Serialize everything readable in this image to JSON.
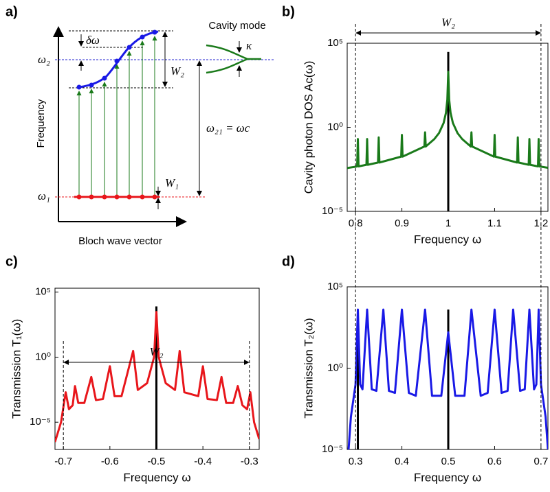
{
  "diagram": {
    "label": "a)",
    "cavity_mode": "Cavity mode",
    "delta_omega": "δω",
    "kappa": "κ",
    "omega2": "ω₂",
    "omega1": "ω₁",
    "W2": "W₂",
    "W1": "W₁",
    "omega21": "ω₂₁ = ωc",
    "ylabel": "Frequency",
    "xlabel": "Bloch wave vector"
  },
  "chart_data": [
    {
      "type": "line",
      "label": "b)",
      "xlabel": "Frequency ω",
      "ylabel": "Cavity photon DOS Ac(ω)",
      "log": true,
      "color": "#1a7a1a",
      "span_label": "W₂",
      "xlim": [
        0.782,
        1.215
      ],
      "ylim": [
        1e-05,
        100000.0
      ],
      "xticks": [
        {
          "value": 0.8,
          "label": "0.8"
        },
        {
          "value": 0.9,
          "label": "0.9"
        },
        1,
        {
          "value": 1.1,
          "label": "1.1"
        },
        {
          "value": 1.2,
          "label": "1.2"
        }
      ],
      "yticks": [
        {
          "value": 1e-05,
          "label": "10⁻⁵"
        },
        {
          "value": 1,
          "label": "10⁰"
        },
        {
          "value": 100000.0,
          "label": "10⁵"
        }
      ],
      "vlines": [
        0.8,
        1.2
      ],
      "x": [
        0.782,
        0.8,
        0.8035,
        0.805,
        0.8065,
        0.8235,
        0.825,
        0.8265,
        0.8485,
        0.85,
        0.8515,
        0.8985,
        0.9,
        0.9015,
        0.9485,
        0.95,
        0.9515,
        0.97,
        0.98,
        0.99,
        0.995,
        0.998,
        1.0,
        1.002,
        1.005,
        1.01,
        1.02,
        1.03,
        1.0485,
        1.05,
        1.0515,
        1.0985,
        1.1,
        1.1015,
        1.1485,
        1.15,
        1.1515,
        1.1735,
        1.175,
        1.1765,
        1.1935,
        1.195,
        1.1965,
        1.215
      ],
      "values": [
        0.00378,
        0.0045,
        0.00473,
        0.2,
        0.00473,
        0.00588,
        0.2,
        0.00588,
        0.008,
        0.25,
        0.008,
        0.018,
        0.35,
        0.018,
        0.072,
        0.5,
        0.072,
        0.2,
        0.45,
        1.8,
        7.2,
        44,
        2000,
        44,
        7.2,
        1.8,
        0.45,
        0.2,
        0.072,
        0.5,
        0.072,
        0.018,
        0.35,
        0.018,
        0.008,
        0.25,
        0.008,
        0.00588,
        0.2,
        0.00588,
        0.00473,
        0.2,
        0.00473,
        0.00388
      ],
      "spikes": {
        "color": "#000000",
        "x": [
          1.0
        ],
        "values": [
          30000
        ]
      }
    },
    {
      "type": "line",
      "label": "c)",
      "xlabel": "Frequency ω",
      "ylabel": "Transmission T₁(ω)",
      "log": true,
      "color": "#e8161b",
      "span_label": "W₂",
      "xlim": [
        -0.718,
        -0.279
      ],
      "ylim": [
        8e-08,
        200000.0
      ],
      "xticks": [
        {
          "value": -0.7,
          "label": "-0.7"
        },
        {
          "value": -0.6,
          "label": "-0.6"
        },
        {
          "value": -0.5,
          "label": "-0.5"
        },
        {
          "value": -0.4,
          "label": "-0.4"
        },
        {
          "value": -0.3,
          "label": "-0.3"
        }
      ],
      "yticks": [
        {
          "value": 1e-05,
          "label": "10⁻⁵"
        },
        {
          "value": 1,
          "label": "10⁰"
        },
        {
          "value": 100000.0,
          "label": "10⁵"
        }
      ],
      "vlines": [
        -0.7,
        -0.3
      ],
      "span_y": 0.4,
      "x": [
        -0.718,
        -0.705,
        -0.695,
        -0.688,
        -0.68,
        -0.675,
        -0.668,
        -0.655,
        -0.64,
        -0.63,
        -0.615,
        -0.6,
        -0.59,
        -0.575,
        -0.55,
        -0.54,
        -0.52,
        -0.505,
        -0.5,
        -0.495,
        -0.48,
        -0.46,
        -0.45,
        -0.44,
        -0.41,
        -0.4,
        -0.39,
        -0.37,
        -0.36,
        -0.35,
        -0.335,
        -0.325,
        -0.315,
        -0.305,
        -0.298,
        -0.29,
        -0.279
      ],
      "values": [
        3e-07,
        1e-05,
        0.002,
        0.0001,
        0.0002,
        0.006,
        0.0003,
        0.0003,
        0.03,
        0.0005,
        0.0006,
        0.2,
        0.001,
        0.001,
        3,
        0.003,
        0.01,
        1,
        3000,
        1,
        0.01,
        0.003,
        3,
        0.002,
        0.001,
        0.2,
        0.0006,
        0.0005,
        0.03,
        0.0003,
        0.0003,
        0.006,
        0.0002,
        0.0001,
        0.002,
        1e-05,
        5e-07
      ],
      "spikes": {
        "color": "#000000",
        "x": [
          -0.5
        ],
        "values": [
          8000
        ]
      }
    },
    {
      "type": "line",
      "label": "d)",
      "xlabel": "Frequency ω",
      "ylabel": "Transmission T₂(ω)",
      "log": true,
      "color": "#1919e6",
      "xlim": [
        0.282,
        0.715
      ],
      "ylim": [
        1e-05,
        100000.0
      ],
      "xticks": [
        {
          "value": 0.3,
          "label": "0.3"
        },
        {
          "value": 0.4,
          "label": "0.4"
        },
        {
          "value": 0.5,
          "label": "0.5"
        },
        {
          "value": 0.6,
          "label": "0.6"
        },
        {
          "value": 0.7,
          "label": "0.7"
        }
      ],
      "yticks": [
        {
          "value": 1e-05,
          "label": "10⁻⁵"
        },
        {
          "value": 1,
          "label": "10⁰"
        },
        {
          "value": 100000.0,
          "label": "10⁵"
        }
      ],
      "vlines": [
        0.3,
        0.7
      ],
      "x": [
        0.285,
        0.29,
        0.3,
        0.305,
        0.31,
        0.315,
        0.325,
        0.335,
        0.345,
        0.36,
        0.372,
        0.385,
        0.4,
        0.415,
        0.43,
        0.45,
        0.465,
        0.485,
        0.5,
        0.515,
        0.535,
        0.55,
        0.57,
        0.585,
        0.6,
        0.615,
        0.628,
        0.64,
        0.655,
        0.665,
        0.675,
        0.685,
        0.69,
        0.695,
        0.7,
        0.71,
        0.715
      ],
      "values": [
        1e-05,
        0.001,
        0.1,
        4000,
        0.1,
        0.05,
        4000,
        0.05,
        0.04,
        4000,
        0.04,
        0.03,
        4000,
        0.03,
        0.02,
        4000,
        0.02,
        0.02,
        160,
        0.02,
        0.02,
        4000,
        0.02,
        0.03,
        4000,
        0.03,
        0.04,
        4000,
        0.04,
        0.05,
        4000,
        0.05,
        0.1,
        4000,
        0.1,
        0.001,
        1e-05
      ],
      "spikes": {
        "color": "#000000",
        "x": [
          0.305,
          0.5
        ],
        "values": [
          4000,
          4000
        ]
      }
    }
  ]
}
